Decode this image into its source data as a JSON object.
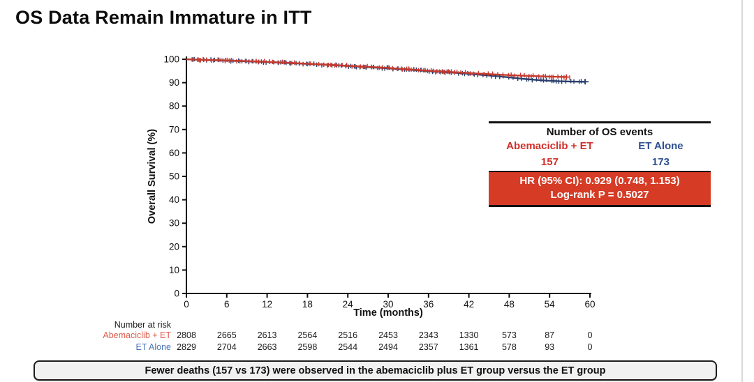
{
  "title": "OS Data Remain Immature in ITT",
  "chart_data": {
    "type": "line",
    "subtype": "kaplan-meier",
    "title": "",
    "xlabel": "Time (months)",
    "ylabel": "Overall Survival (%)",
    "xlim": [
      0,
      60
    ],
    "ylim": [
      0,
      100
    ],
    "xticks": [
      0,
      6,
      12,
      18,
      24,
      30,
      36,
      42,
      48,
      54,
      60
    ],
    "yticks": [
      0,
      10,
      20,
      30,
      40,
      50,
      60,
      70,
      80,
      90,
      100
    ],
    "grid": false,
    "legend_position": "none",
    "series": [
      {
        "name": "ET Alone",
        "color": "#2b3f6d",
        "censor_seed": 7,
        "points": [
          [
            0,
            100
          ],
          [
            3,
            99.7
          ],
          [
            6,
            99.4
          ],
          [
            9,
            99.1
          ],
          [
            12,
            98.8
          ],
          [
            15,
            98.4
          ],
          [
            18,
            98.0
          ],
          [
            21,
            97.6
          ],
          [
            24,
            97.1
          ],
          [
            27,
            96.6
          ],
          [
            30,
            96.1
          ],
          [
            33,
            95.5
          ],
          [
            36,
            94.9
          ],
          [
            39,
            94.4
          ],
          [
            42,
            93.8
          ],
          [
            44,
            93.3
          ],
          [
            46,
            92.8
          ],
          [
            48,
            92.3
          ],
          [
            49.5,
            91.8
          ],
          [
            51,
            91.4
          ],
          [
            52.5,
            91.1
          ],
          [
            54,
            90.8
          ],
          [
            55.5,
            90.6
          ],
          [
            57,
            90.5
          ],
          [
            59.3,
            90.4
          ]
        ]
      },
      {
        "name": "Abemaciclib + ET",
        "color": "#c53a2e",
        "censor_seed": 13,
        "points": [
          [
            0,
            100
          ],
          [
            3,
            99.7
          ],
          [
            6,
            99.5
          ],
          [
            9,
            99.2
          ],
          [
            12,
            98.9
          ],
          [
            15,
            98.5
          ],
          [
            18,
            98.1
          ],
          [
            21,
            97.7
          ],
          [
            24,
            97.2
          ],
          [
            27,
            96.8
          ],
          [
            30,
            96.3
          ],
          [
            33,
            95.7
          ],
          [
            36,
            95.1
          ],
          [
            39,
            94.6
          ],
          [
            42,
            94.1
          ],
          [
            44,
            93.8
          ],
          [
            46,
            93.5
          ],
          [
            48,
            93.2
          ],
          [
            50,
            93.0
          ],
          [
            52,
            92.8
          ],
          [
            54,
            92.6
          ],
          [
            55.5,
            92.5
          ],
          [
            56.5,
            92.4
          ]
        ]
      }
    ]
  },
  "events_box": {
    "header": "Number of OS events",
    "groups": [
      {
        "name": "Abemaciclib + ET",
        "count": "157",
        "color": "#d2302a"
      },
      {
        "name": "ET Alone",
        "count": "173",
        "color": "#2e5090"
      }
    ],
    "hr_line1": "HR (95% CI): 0.929 (0.748, 1.153)",
    "hr_line2": "Log-rank P = 0.5027",
    "hr_bg": "#d63b25"
  },
  "risk_table": {
    "label": "Number at risk",
    "timepoints": [
      0,
      6,
      12,
      18,
      24,
      30,
      36,
      42,
      48,
      54,
      60
    ],
    "rows": [
      {
        "name": "Abemaciclib + ET",
        "color": "#e05c4b",
        "values": [
          2808,
          2665,
          2613,
          2564,
          2516,
          2453,
          2343,
          1330,
          573,
          87,
          0
        ]
      },
      {
        "name": "ET Alone",
        "color": "#4a74ba",
        "values": [
          2829,
          2704,
          2663,
          2598,
          2544,
          2494,
          2357,
          1361,
          578,
          93,
          0
        ]
      }
    ]
  },
  "footer_note": "Fewer deaths (157 vs 173) were observed in the abemaciclib plus ET group versus the ET group"
}
